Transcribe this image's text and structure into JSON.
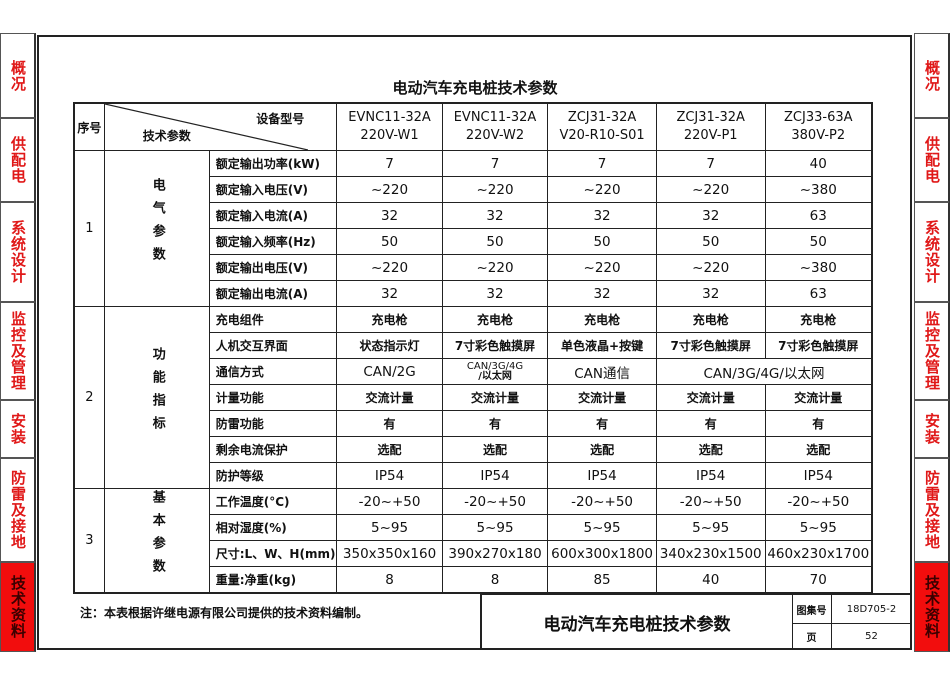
{
  "side_tabs": [
    {
      "label": "概况",
      "active": false
    },
    {
      "label": "供配电",
      "active": false
    },
    {
      "label": "系统设计",
      "active": false
    },
    {
      "label": "监控及管理",
      "active": false
    },
    {
      "label": "安装",
      "active": false
    },
    {
      "label": "防雷及接地",
      "active": false
    },
    {
      "label": "技术资料",
      "active": true
    }
  ],
  "colors": {
    "tab_text": "#e01818",
    "tab_active_bg": "#f20d0d"
  },
  "title": "电动汽车充电桩技术参数",
  "table": {
    "header": {
      "index": "序号",
      "device_model": "设备型号",
      "tech_params": "技术参数",
      "models": [
        {
          "line1": "EVNC11-32A",
          "line2": "220V-W1"
        },
        {
          "line1": "EVNC11-32A",
          "line2": "220V-W2"
        },
        {
          "line1": "ZCJ31-32A",
          "line2": "V20-R10-S01"
        },
        {
          "line1": "ZCJ31-32A",
          "line2": "220V-P1"
        },
        {
          "line1": "ZCJ33-63A",
          "line2": "380V-P2"
        }
      ]
    },
    "groups": [
      {
        "index": "1",
        "category": "电气参数",
        "rows": [
          {
            "param": "额定输出功率(kW)",
            "values": [
              "7",
              "7",
              "7",
              "7",
              "40"
            ]
          },
          {
            "param": "额定输入电压(V)",
            "values": [
              "~220",
              "~220",
              "~220",
              "~220",
              "~380"
            ]
          },
          {
            "param": "额定输入电流(A)",
            "values": [
              "32",
              "32",
              "32",
              "32",
              "63"
            ]
          },
          {
            "param": "额定输入频率(Hz)",
            "values": [
              "50",
              "50",
              "50",
              "50",
              "50"
            ]
          },
          {
            "param": "额定输出电压(V)",
            "values": [
              "~220",
              "~220",
              "~220",
              "~220",
              "~380"
            ]
          },
          {
            "param": "额定输出电流(A)",
            "values": [
              "32",
              "32",
              "32",
              "32",
              "63"
            ]
          }
        ]
      },
      {
        "index": "2",
        "category": "功能指标",
        "rows": [
          {
            "param": "充电组件",
            "values": [
              "充电枪",
              "充电枪",
              "充电枪",
              "充电枪",
              "充电枪"
            ]
          },
          {
            "param": "人机交互界面",
            "values": [
              "状态指示灯",
              "7寸彩色触摸屏",
              "单色液晶+按键",
              "7寸彩色触摸屏",
              "7寸彩色触摸屏"
            ]
          },
          {
            "param": "通信方式",
            "values": [
              "CAN/2G",
              "CAN/3G/4G/以太网",
              "CAN通信",
              "CAN/3G/4G/以太网"
            ],
            "values_split": [
              "CAN/3G/4G",
              "/以太网"
            ]
          },
          {
            "param": "计量功能",
            "values": [
              "交流计量",
              "交流计量",
              "交流计量",
              "交流计量",
              "交流计量"
            ]
          },
          {
            "param": "防雷功能",
            "values": [
              "有",
              "有",
              "有",
              "有",
              "有"
            ]
          },
          {
            "param": "剩余电流保护",
            "values": [
              "选配",
              "选配",
              "选配",
              "选配",
              "选配"
            ]
          },
          {
            "param": "防护等级",
            "values": [
              "IP54",
              "IP54",
              "IP54",
              "IP54",
              "IP54"
            ]
          }
        ]
      },
      {
        "index": "3",
        "category": "基本参数",
        "rows": [
          {
            "param": "工作温度(°C)",
            "values": [
              "-20~+50",
              "-20~+50",
              "-20~+50",
              "-20~+50",
              "-20~+50"
            ]
          },
          {
            "param": "相对湿度(%)",
            "values": [
              "5~95",
              "5~95",
              "5~95",
              "5~95",
              "5~95"
            ]
          },
          {
            "param": "尺寸:L、W、H(mm)",
            "values": [
              "350x350x160",
              "390x270x180",
              "600x300x1800",
              "340x230x1500",
              "460x230x1700"
            ]
          },
          {
            "param": "重量:净重(kg)",
            "values": [
              "8",
              "8",
              "85",
              "40",
              "70"
            ]
          }
        ]
      }
    ]
  },
  "note": "注：本表根据许继电源有限公司提供的技术资料编制。",
  "title_block": {
    "title": "电动汽车充电桩技术参数",
    "atlas_label": "图集号",
    "atlas_no": "18D705-2",
    "page_label": "页",
    "page_no": "52"
  }
}
